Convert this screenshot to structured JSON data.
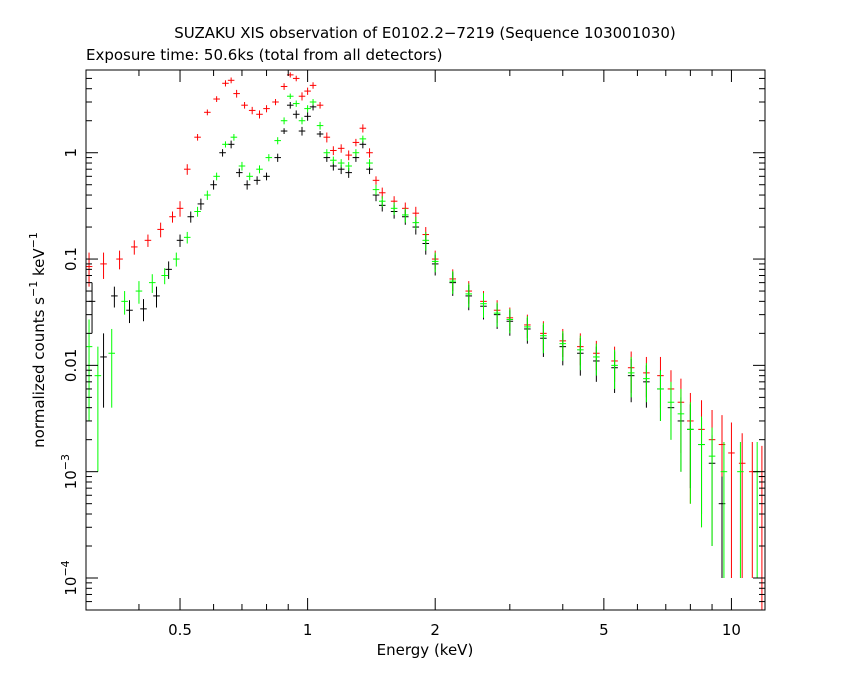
{
  "chart_data": {
    "type": "scatter",
    "title": "SUZAKU XIS observation of E0102.2−7219 (Sequence 103001030)",
    "subtitle": "Exposure time: 50.6ks (total from all detectors)",
    "xlabel": "Energy (keV)",
    "ylabel_main": "normalized counts s",
    "ylabel_sup1": "−1",
    "ylabel_mid": " keV",
    "ylabel_sup2": "−1",
    "xscale": "log",
    "yscale": "log",
    "xlim": [
      0.3,
      12
    ],
    "ylim": [
      5e-05,
      6
    ],
    "grid": false,
    "x_ticks": [
      {
        "value": 0.5,
        "label": "0.5"
      },
      {
        "value": 1,
        "label": "1"
      },
      {
        "value": 2,
        "label": "2"
      },
      {
        "value": 5,
        "label": "5"
      },
      {
        "value": 10,
        "label": "10"
      }
    ],
    "y_ticks": [
      {
        "value": 1,
        "label": "1"
      },
      {
        "value": 0.1,
        "label": "0.1"
      },
      {
        "value": 0.01,
        "label": "0.01"
      },
      {
        "value": 0.001,
        "label": "10",
        "sup": "−3"
      },
      {
        "value": 0.0001,
        "label": "10",
        "sup": "−4"
      }
    ],
    "series": [
      {
        "color": "#ff0000",
        "points": [
          {
            "x": 0.305,
            "y": 0.085,
            "err": 0.03
          },
          {
            "x": 0.33,
            "y": 0.09,
            "err": 0.025
          },
          {
            "x": 0.36,
            "y": 0.1,
            "err": 0.02
          },
          {
            "x": 0.39,
            "y": 0.13,
            "err": 0.02
          },
          {
            "x": 0.42,
            "y": 0.15,
            "err": 0.02
          },
          {
            "x": 0.45,
            "y": 0.19,
            "err": 0.03
          },
          {
            "x": 0.48,
            "y": 0.25,
            "err": 0.03
          },
          {
            "x": 0.5,
            "y": 0.3,
            "err": 0.05
          },
          {
            "x": 0.52,
            "y": 0.7,
            "err": 0.08
          },
          {
            "x": 0.55,
            "y": 1.4,
            "err": 0.1
          },
          {
            "x": 0.58,
            "y": 2.4,
            "err": 0.15
          },
          {
            "x": 0.61,
            "y": 3.2,
            "err": 0.2
          },
          {
            "x": 0.64,
            "y": 4.5,
            "err": 0.3
          },
          {
            "x": 0.66,
            "y": 4.8,
            "err": 0.3
          },
          {
            "x": 0.68,
            "y": 3.6,
            "err": 0.3
          },
          {
            "x": 0.71,
            "y": 2.8,
            "err": 0.2
          },
          {
            "x": 0.74,
            "y": 2.5,
            "err": 0.2
          },
          {
            "x": 0.77,
            "y": 2.3,
            "err": 0.2
          },
          {
            "x": 0.8,
            "y": 2.6,
            "err": 0.2
          },
          {
            "x": 0.84,
            "y": 3.0,
            "err": 0.2
          },
          {
            "x": 0.88,
            "y": 4.2,
            "err": 0.3
          },
          {
            "x": 0.91,
            "y": 5.4,
            "err": 0.3
          },
          {
            "x": 0.94,
            "y": 5.0,
            "err": 0.3
          },
          {
            "x": 0.97,
            "y": 3.4,
            "err": 0.3
          },
          {
            "x": 1.0,
            "y": 3.8,
            "err": 0.3
          },
          {
            "x": 1.03,
            "y": 4.3,
            "err": 0.3
          },
          {
            "x": 1.07,
            "y": 2.8,
            "err": 0.2
          },
          {
            "x": 1.11,
            "y": 1.4,
            "err": 0.15
          },
          {
            "x": 1.15,
            "y": 1.05,
            "err": 0.1
          },
          {
            "x": 1.2,
            "y": 1.1,
            "err": 0.1
          },
          {
            "x": 1.25,
            "y": 0.95,
            "err": 0.1
          },
          {
            "x": 1.3,
            "y": 1.25,
            "err": 0.1
          },
          {
            "x": 1.35,
            "y": 1.7,
            "err": 0.15
          },
          {
            "x": 1.4,
            "y": 1.0,
            "err": 0.1
          },
          {
            "x": 1.45,
            "y": 0.55,
            "err": 0.05
          },
          {
            "x": 1.5,
            "y": 0.42,
            "err": 0.05
          },
          {
            "x": 1.6,
            "y": 0.35,
            "err": 0.04
          },
          {
            "x": 1.7,
            "y": 0.3,
            "err": 0.04
          },
          {
            "x": 1.8,
            "y": 0.27,
            "err": 0.04
          },
          {
            "x": 1.9,
            "y": 0.17,
            "err": 0.03
          },
          {
            "x": 2.0,
            "y": 0.1,
            "err": 0.02
          },
          {
            "x": 2.2,
            "y": 0.065,
            "err": 0.015
          },
          {
            "x": 2.4,
            "y": 0.05,
            "err": 0.012
          },
          {
            "x": 2.6,
            "y": 0.04,
            "err": 0.01
          },
          {
            "x": 2.8,
            "y": 0.033,
            "err": 0.008
          },
          {
            "x": 3.0,
            "y": 0.028,
            "err": 0.007
          },
          {
            "x": 3.3,
            "y": 0.024,
            "err": 0.006
          },
          {
            "x": 3.6,
            "y": 0.02,
            "err": 0.006
          },
          {
            "x": 4.0,
            "y": 0.017,
            "err": 0.005
          },
          {
            "x": 4.4,
            "y": 0.015,
            "err": 0.005
          },
          {
            "x": 4.8,
            "y": 0.013,
            "err": 0.004
          },
          {
            "x": 5.3,
            "y": 0.011,
            "err": 0.004
          },
          {
            "x": 5.8,
            "y": 0.0095,
            "err": 0.004
          },
          {
            "x": 6.3,
            "y": 0.0085,
            "err": 0.0035
          },
          {
            "x": 6.8,
            "y": 0.008,
            "err": 0.004
          },
          {
            "x": 7.2,
            "y": 0.006,
            "err": 0.003
          },
          {
            "x": 7.6,
            "y": 0.0045,
            "err": 0.003
          },
          {
            "x": 8.0,
            "y": 0.003,
            "err": 0.0025
          },
          {
            "x": 8.5,
            "y": 0.0025,
            "err": 0.0022
          },
          {
            "x": 9.0,
            "y": 0.002,
            "err": 0.0018
          },
          {
            "x": 9.5,
            "y": 0.0018,
            "err": 0.0016
          },
          {
            "x": 10.0,
            "y": 0.0015,
            "err": 0.0014
          },
          {
            "x": 10.6,
            "y": 0.0012,
            "err": 0.0011
          },
          {
            "x": 11.2,
            "y": 0.001,
            "err": 0.0009
          },
          {
            "x": 11.8,
            "y": 0.0009,
            "err": 0.00085
          }
        ]
      },
      {
        "color": "#000000",
        "points": [
          {
            "x": 0.31,
            "y": 0.04,
            "err": 0.02
          },
          {
            "x": 0.33,
            "y": 0.012,
            "err": 0.008
          },
          {
            "x": 0.35,
            "y": 0.045,
            "err": 0.01
          },
          {
            "x": 0.38,
            "y": 0.033,
            "err": 0.008
          },
          {
            "x": 0.41,
            "y": 0.034,
            "err": 0.008
          },
          {
            "x": 0.44,
            "y": 0.045,
            "err": 0.01
          },
          {
            "x": 0.47,
            "y": 0.08,
            "err": 0.015
          },
          {
            "x": 0.5,
            "y": 0.15,
            "err": 0.02
          },
          {
            "x": 0.53,
            "y": 0.25,
            "err": 0.03
          },
          {
            "x": 0.56,
            "y": 0.33,
            "err": 0.04
          },
          {
            "x": 0.6,
            "y": 0.5,
            "err": 0.05
          },
          {
            "x": 0.63,
            "y": 1.0,
            "err": 0.08
          },
          {
            "x": 0.66,
            "y": 1.2,
            "err": 0.1
          },
          {
            "x": 0.69,
            "y": 0.65,
            "err": 0.06
          },
          {
            "x": 0.72,
            "y": 0.5,
            "err": 0.05
          },
          {
            "x": 0.76,
            "y": 0.55,
            "err": 0.05
          },
          {
            "x": 0.8,
            "y": 0.6,
            "err": 0.05
          },
          {
            "x": 0.85,
            "y": 0.9,
            "err": 0.08
          },
          {
            "x": 0.88,
            "y": 1.6,
            "err": 0.1
          },
          {
            "x": 0.91,
            "y": 2.8,
            "err": 0.2
          },
          {
            "x": 0.94,
            "y": 2.3,
            "err": 0.2
          },
          {
            "x": 0.97,
            "y": 1.6,
            "err": 0.15
          },
          {
            "x": 1.0,
            "y": 2.2,
            "err": 0.2
          },
          {
            "x": 1.03,
            "y": 2.7,
            "err": 0.2
          },
          {
            "x": 1.07,
            "y": 1.5,
            "err": 0.1
          },
          {
            "x": 1.11,
            "y": 0.9,
            "err": 0.08
          },
          {
            "x": 1.15,
            "y": 0.75,
            "err": 0.07
          },
          {
            "x": 1.2,
            "y": 0.7,
            "err": 0.07
          },
          {
            "x": 1.25,
            "y": 0.65,
            "err": 0.07
          },
          {
            "x": 1.3,
            "y": 0.9,
            "err": 0.08
          },
          {
            "x": 1.35,
            "y": 1.2,
            "err": 0.1
          },
          {
            "x": 1.4,
            "y": 0.7,
            "err": 0.07
          },
          {
            "x": 1.45,
            "y": 0.4,
            "err": 0.05
          },
          {
            "x": 1.5,
            "y": 0.32,
            "err": 0.04
          },
          {
            "x": 1.6,
            "y": 0.28,
            "err": 0.04
          },
          {
            "x": 1.7,
            "y": 0.25,
            "err": 0.04
          },
          {
            "x": 1.8,
            "y": 0.2,
            "err": 0.03
          },
          {
            "x": 1.9,
            "y": 0.14,
            "err": 0.03
          },
          {
            "x": 2.0,
            "y": 0.09,
            "err": 0.02
          },
          {
            "x": 2.2,
            "y": 0.06,
            "err": 0.015
          },
          {
            "x": 2.4,
            "y": 0.045,
            "err": 0.012
          },
          {
            "x": 2.6,
            "y": 0.036,
            "err": 0.009
          },
          {
            "x": 2.8,
            "y": 0.03,
            "err": 0.008
          },
          {
            "x": 3.0,
            "y": 0.026,
            "err": 0.007
          },
          {
            "x": 3.3,
            "y": 0.022,
            "err": 0.006
          },
          {
            "x": 3.6,
            "y": 0.018,
            "err": 0.006
          },
          {
            "x": 4.0,
            "y": 0.015,
            "err": 0.005
          },
          {
            "x": 4.4,
            "y": 0.013,
            "err": 0.005
          },
          {
            "x": 4.8,
            "y": 0.011,
            "err": 0.004
          },
          {
            "x": 5.3,
            "y": 0.0095,
            "err": 0.004
          },
          {
            "x": 5.8,
            "y": 0.008,
            "err": 0.0035
          },
          {
            "x": 6.3,
            "y": 0.007,
            "err": 0.003
          },
          {
            "x": 6.8,
            "y": 0.006,
            "err": 0.003
          },
          {
            "x": 7.2,
            "y": 0.004,
            "err": 0.002
          },
          {
            "x": 7.6,
            "y": 0.003,
            "err": 0.002
          },
          {
            "x": 8.0,
            "y": 0.0025,
            "err": 0.0018
          },
          {
            "x": 8.5,
            "y": 0.0018,
            "err": 0.0014
          },
          {
            "x": 9.0,
            "y": 0.0012,
            "err": 0.001
          },
          {
            "x": 9.5,
            "y": 0.0005,
            "err": 0.0004
          }
        ]
      },
      {
        "color": "#00ff00",
        "points": [
          {
            "x": 0.305,
            "y": 0.015,
            "err": 0.012
          },
          {
            "x": 0.32,
            "y": 0.008,
            "err": 0.007
          },
          {
            "x": 0.345,
            "y": 0.013,
            "err": 0.009
          },
          {
            "x": 0.37,
            "y": 0.04,
            "err": 0.01
          },
          {
            "x": 0.4,
            "y": 0.05,
            "err": 0.012
          },
          {
            "x": 0.43,
            "y": 0.06,
            "err": 0.012
          },
          {
            "x": 0.46,
            "y": 0.07,
            "err": 0.012
          },
          {
            "x": 0.49,
            "y": 0.1,
            "err": 0.015
          },
          {
            "x": 0.52,
            "y": 0.16,
            "err": 0.02
          },
          {
            "x": 0.55,
            "y": 0.28,
            "err": 0.03
          },
          {
            "x": 0.58,
            "y": 0.4,
            "err": 0.04
          },
          {
            "x": 0.61,
            "y": 0.6,
            "err": 0.05
          },
          {
            "x": 0.64,
            "y": 1.2,
            "err": 0.08
          },
          {
            "x": 0.67,
            "y": 1.4,
            "err": 0.1
          },
          {
            "x": 0.7,
            "y": 0.75,
            "err": 0.07
          },
          {
            "x": 0.73,
            "y": 0.6,
            "err": 0.05
          },
          {
            "x": 0.77,
            "y": 0.7,
            "err": 0.06
          },
          {
            "x": 0.81,
            "y": 0.9,
            "err": 0.07
          },
          {
            "x": 0.85,
            "y": 1.3,
            "err": 0.1
          },
          {
            "x": 0.88,
            "y": 2.0,
            "err": 0.15
          },
          {
            "x": 0.91,
            "y": 3.4,
            "err": 0.2
          },
          {
            "x": 0.94,
            "y": 2.9,
            "err": 0.2
          },
          {
            "x": 0.97,
            "y": 2.0,
            "err": 0.15
          },
          {
            "x": 1.0,
            "y": 2.6,
            "err": 0.2
          },
          {
            "x": 1.03,
            "y": 3.0,
            "err": 0.2
          },
          {
            "x": 1.07,
            "y": 1.8,
            "err": 0.15
          },
          {
            "x": 1.11,
            "y": 1.0,
            "err": 0.08
          },
          {
            "x": 1.15,
            "y": 0.85,
            "err": 0.07
          },
          {
            "x": 1.2,
            "y": 0.8,
            "err": 0.07
          },
          {
            "x": 1.25,
            "y": 0.75,
            "err": 0.07
          },
          {
            "x": 1.3,
            "y": 1.0,
            "err": 0.08
          },
          {
            "x": 1.35,
            "y": 1.35,
            "err": 0.1
          },
          {
            "x": 1.4,
            "y": 0.8,
            "err": 0.07
          },
          {
            "x": 1.45,
            "y": 0.45,
            "err": 0.05
          },
          {
            "x": 1.5,
            "y": 0.35,
            "err": 0.04
          },
          {
            "x": 1.6,
            "y": 0.3,
            "err": 0.04
          },
          {
            "x": 1.7,
            "y": 0.26,
            "err": 0.04
          },
          {
            "x": 1.8,
            "y": 0.22,
            "err": 0.03
          },
          {
            "x": 1.9,
            "y": 0.15,
            "err": 0.03
          },
          {
            "x": 2.0,
            "y": 0.095,
            "err": 0.02
          },
          {
            "x": 2.2,
            "y": 0.062,
            "err": 0.015
          },
          {
            "x": 2.4,
            "y": 0.047,
            "err": 0.012
          },
          {
            "x": 2.6,
            "y": 0.038,
            "err": 0.01
          },
          {
            "x": 2.8,
            "y": 0.031,
            "err": 0.008
          },
          {
            "x": 3.0,
            "y": 0.027,
            "err": 0.007
          },
          {
            "x": 3.3,
            "y": 0.023,
            "err": 0.006
          },
          {
            "x": 3.6,
            "y": 0.019,
            "err": 0.006
          },
          {
            "x": 4.0,
            "y": 0.016,
            "err": 0.005
          },
          {
            "x": 4.4,
            "y": 0.014,
            "err": 0.005
          },
          {
            "x": 4.8,
            "y": 0.012,
            "err": 0.004
          },
          {
            "x": 5.3,
            "y": 0.01,
            "err": 0.004
          },
          {
            "x": 5.8,
            "y": 0.0085,
            "err": 0.0035
          },
          {
            "x": 6.3,
            "y": 0.0075,
            "err": 0.003
          },
          {
            "x": 6.8,
            "y": 0.006,
            "err": 0.003
          },
          {
            "x": 7.2,
            "y": 0.0045,
            "err": 0.0025
          },
          {
            "x": 7.6,
            "y": 0.0035,
            "err": 0.0025
          },
          {
            "x": 8.0,
            "y": 0.0025,
            "err": 0.002
          },
          {
            "x": 8.5,
            "y": 0.0018,
            "err": 0.0015
          },
          {
            "x": 9.0,
            "y": 0.0014,
            "err": 0.0012
          },
          {
            "x": 9.6,
            "y": 0.001,
            "err": 0.0009
          },
          {
            "x": 10.5,
            "y": 0.001,
            "err": 0.0009
          },
          {
            "x": 11.5,
            "y": 0.001,
            "err": 0.0009
          }
        ]
      }
    ]
  }
}
